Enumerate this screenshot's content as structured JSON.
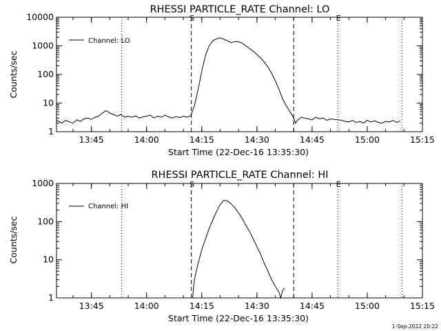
{
  "footer": {
    "timestamp": "1-Sep-2022 20:22"
  },
  "chart_data": [
    {
      "type": "line",
      "title": "RHESSI PARTICLE_RATE Channel: LO",
      "xlabel": "Start Time (22-Dec-16 13:35:30)",
      "ylabel": "Counts/sec",
      "y_scale": "log",
      "ylim": [
        1,
        10000
      ],
      "y_ticks": [
        {
          "value": 1,
          "label": "1"
        },
        {
          "value": 10,
          "label": "10"
        },
        {
          "value": 100,
          "label": "100"
        },
        {
          "value": 1000,
          "label": "1000"
        },
        {
          "value": 10000,
          "label": "10000"
        }
      ],
      "xlim": [
        "13:35:30",
        "15:15:00"
      ],
      "x_ticks": [
        "13:45",
        "14:00",
        "14:15",
        "14:30",
        "14:45",
        "15:00",
        "15:15"
      ],
      "legend": {
        "position": "top-left",
        "entries": [
          "Channel: LO"
        ]
      },
      "markers": [
        {
          "time": "13:53:10",
          "style": "dotted",
          "label": ""
        },
        {
          "time": "14:12:10",
          "style": "dashed",
          "label": "S"
        },
        {
          "time": "14:40:00",
          "style": "dashed",
          "label": ""
        },
        {
          "time": "14:52:00",
          "style": "dotted",
          "label": "E"
        },
        {
          "time": "15:09:30",
          "style": "dotted",
          "label": ""
        }
      ],
      "series": [
        {
          "name": "Channel: LO",
          "x": [
            "13:35:30",
            "13:37",
            "13:38",
            "13:39",
            "13:40",
            "13:41",
            "13:42",
            "13:43",
            "13:44",
            "13:45",
            "13:46",
            "13:47",
            "13:48",
            "13:49",
            "13:50",
            "13:51",
            "13:52",
            "13:53",
            "13:54",
            "13:55",
            "13:56",
            "13:57",
            "13:58",
            "13:59",
            "14:00",
            "14:01",
            "14:02",
            "14:03",
            "14:04",
            "14:05",
            "14:06",
            "14:07",
            "14:08",
            "14:09",
            "14:10",
            "14:11",
            "14:12",
            "14:13",
            "14:14",
            "14:15",
            "14:16",
            "14:17",
            "14:18",
            "14:19",
            "14:20",
            "14:21",
            "14:22",
            "14:23",
            "14:24",
            "14:25",
            "14:26",
            "14:27",
            "14:28",
            "14:29",
            "14:30",
            "14:31",
            "14:32",
            "14:33",
            "14:34",
            "14:35",
            "14:36",
            "14:37",
            "14:38",
            "14:39",
            "14:40",
            "14:40:30",
            "14:41",
            "14:42",
            "14:43",
            "14:44",
            "14:45",
            "14:46",
            "14:47",
            "14:48",
            "14:49",
            "14:50",
            "14:51",
            "14:52",
            "14:53",
            "14:54",
            "14:55",
            "14:56",
            "14:57",
            "14:58",
            "14:59",
            "15:00",
            "15:01",
            "15:02",
            "15:03",
            "15:04",
            "15:05",
            "15:06",
            "15:07",
            "15:08",
            "15:09"
          ],
          "values": [
            2.5,
            2.0,
            2.5,
            2.2,
            2.0,
            2.6,
            2.3,
            2.8,
            3.0,
            2.7,
            3.2,
            3.5,
            4.5,
            5.5,
            4.5,
            4.0,
            3.5,
            4.0,
            3.2,
            3.5,
            3.2,
            3.6,
            3.0,
            3.3,
            3.5,
            3.8,
            3.0,
            3.5,
            3.2,
            3.8,
            3.3,
            3.0,
            3.4,
            3.1,
            3.5,
            3.2,
            3.6,
            8,
            30,
            130,
            450,
            1000,
            1500,
            1750,
            1900,
            1700,
            1500,
            1300,
            1400,
            1400,
            1250,
            1000,
            800,
            650,
            500,
            380,
            270,
            180,
            110,
            60,
            30,
            14,
            8,
            5,
            3,
            2.0,
            2.5,
            3.2,
            3.0,
            2.8,
            2.6,
            3.2,
            2.8,
            3.0,
            2.5,
            2.8,
            2.7,
            2.6,
            2.5,
            2.3,
            2.2,
            2.5,
            2.1,
            2.3,
            2.0,
            2.5,
            2.2,
            2.4,
            2.1,
            2.0,
            2.3,
            2.2,
            2.5,
            2.1,
            2.4
          ]
        }
      ]
    },
    {
      "type": "line",
      "title": "RHESSI PARTICLE_RATE Channel: HI",
      "xlabel": "Start Time (22-Dec-16 13:35:30)",
      "ylabel": "Counts/sec",
      "y_scale": "log",
      "ylim": [
        1,
        1000
      ],
      "y_ticks": [
        {
          "value": 1,
          "label": "1"
        },
        {
          "value": 10,
          "label": "10"
        },
        {
          "value": 100,
          "label": "100"
        },
        {
          "value": 1000,
          "label": "1000"
        }
      ],
      "xlim": [
        "13:35:30",
        "15:15:00"
      ],
      "x_ticks": [
        "13:45",
        "14:00",
        "14:15",
        "14:30",
        "14:45",
        "15:00",
        "15:15"
      ],
      "legend": {
        "position": "top-left",
        "entries": [
          "Channel: HI"
        ]
      },
      "markers": [
        {
          "time": "13:53:10",
          "style": "dotted",
          "label": ""
        },
        {
          "time": "14:12:10",
          "style": "dashed",
          "label": "S"
        },
        {
          "time": "14:40:00",
          "style": "dashed",
          "label": ""
        },
        {
          "time": "14:52:00",
          "style": "dotted",
          "label": "E"
        },
        {
          "time": "15:09:30",
          "style": "dotted",
          "label": ""
        }
      ],
      "series": [
        {
          "name": "Channel: HI",
          "x": [
            "14:12:30",
            "14:13",
            "14:14",
            "14:15",
            "14:16",
            "14:17",
            "14:18",
            "14:19",
            "14:20",
            "14:21",
            "14:22",
            "14:23",
            "14:24",
            "14:25",
            "14:26",
            "14:27",
            "14:28",
            "14:29",
            "14:30",
            "14:31",
            "14:32",
            "14:33",
            "14:34",
            "14:35",
            "14:36",
            "14:36:30",
            "14:37",
            "14:37:30"
          ],
          "values": [
            1.0,
            3,
            8,
            18,
            35,
            65,
            110,
            180,
            280,
            360,
            350,
            290,
            230,
            170,
            120,
            80,
            55,
            35,
            22,
            14,
            8,
            5,
            3,
            2,
            1.4,
            1.0,
            1.6,
            1.8
          ]
        }
      ]
    }
  ]
}
